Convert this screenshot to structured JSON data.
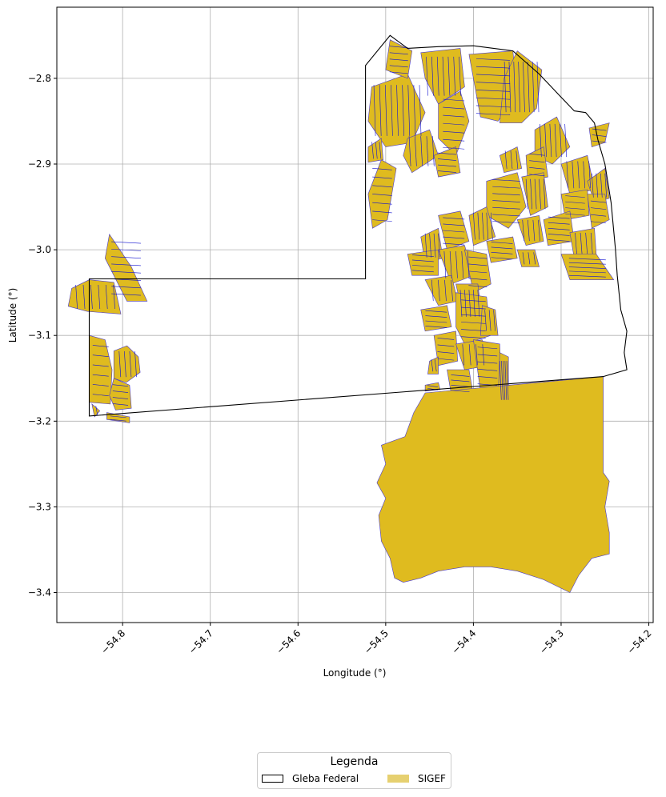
{
  "chart_data": {
    "type": "map",
    "xlabel": "Longitude (°)",
    "ylabel": "Latitude (°)",
    "xlim": [
      -54.875,
      -54.195
    ],
    "ylim": [
      -3.435,
      -2.717
    ],
    "xticks": [
      {
        "value": -54.8,
        "label": "−54.8"
      },
      {
        "value": -54.7,
        "label": "−54.7"
      },
      {
        "value": -54.6,
        "label": "−54.6"
      },
      {
        "value": -54.5,
        "label": "−54.5"
      },
      {
        "value": -54.4,
        "label": "−54.4"
      },
      {
        "value": -54.3,
        "label": "−54.3"
      },
      {
        "value": -54.2,
        "label": "−54.2"
      }
    ],
    "yticks": [
      {
        "value": -2.8,
        "label": "−2.8"
      },
      {
        "value": -2.9,
        "label": "−2.9"
      },
      {
        "value": -3.0,
        "label": "−3.0"
      },
      {
        "value": -3.1,
        "label": "−3.1"
      },
      {
        "value": -3.2,
        "label": "−3.2"
      },
      {
        "value": -3.3,
        "label": "−3.3"
      },
      {
        "value": -3.4,
        "label": "−3.4"
      }
    ],
    "grid": true,
    "xtick_rotation": 45,
    "legend_placement": "bottom-center",
    "gleba_boundary": [
      [
        -54.838,
        -3.194
      ],
      [
        -54.838,
        -3.034
      ],
      [
        -54.523,
        -3.034
      ],
      [
        -54.523,
        -2.785
      ],
      [
        -54.495,
        -2.75
      ],
      [
        -54.475,
        -2.765
      ],
      [
        -54.44,
        -2.763
      ],
      [
        -54.4,
        -2.762
      ],
      [
        -54.355,
        -2.768
      ],
      [
        -54.325,
        -2.795
      ],
      [
        -54.3,
        -2.822
      ],
      [
        -54.285,
        -2.838
      ],
      [
        -54.272,
        -2.84
      ],
      [
        -54.262,
        -2.852
      ],
      [
        -54.258,
        -2.872
      ],
      [
        -54.25,
        -2.9
      ],
      [
        -54.243,
        -2.945
      ],
      [
        -54.238,
        -3.0
      ],
      [
        -54.236,
        -3.03
      ],
      [
        -54.232,
        -3.07
      ],
      [
        -54.225,
        -3.095
      ],
      [
        -54.228,
        -3.12
      ],
      [
        -54.225,
        -3.14
      ],
      [
        -54.252,
        -3.148
      ],
      [
        -54.838,
        -3.194
      ]
    ],
    "parcels": [
      [
        [
          -54.516,
          -2.81
        ],
        [
          -54.475,
          -2.795
        ],
        [
          -54.455,
          -2.84
        ],
        [
          -54.47,
          -2.875
        ],
        [
          -54.5,
          -2.88
        ],
        [
          -54.52,
          -2.85
        ]
      ],
      [
        [
          -54.52,
          -2.935
        ],
        [
          -54.505,
          -2.895
        ],
        [
          -54.488,
          -2.905
        ],
        [
          -54.498,
          -2.965
        ],
        [
          -54.515,
          -2.975
        ]
      ],
      [
        [
          -54.52,
          -2.88
        ],
        [
          -54.505,
          -2.87
        ],
        [
          -54.503,
          -2.895
        ],
        [
          -54.52,
          -2.898
        ]
      ],
      [
        [
          -54.495,
          -2.755
        ],
        [
          -54.47,
          -2.768
        ],
        [
          -54.475,
          -2.8
        ],
        [
          -54.5,
          -2.79
        ]
      ],
      [
        [
          -54.46,
          -2.77
        ],
        [
          -54.415,
          -2.765
        ],
        [
          -54.41,
          -2.81
        ],
        [
          -54.44,
          -2.83
        ],
        [
          -54.455,
          -2.8
        ]
      ],
      [
        [
          -54.405,
          -2.772
        ],
        [
          -54.355,
          -2.768
        ],
        [
          -54.35,
          -2.82
        ],
        [
          -54.372,
          -2.85
        ],
        [
          -54.392,
          -2.845
        ],
        [
          -54.4,
          -2.8
        ]
      ],
      [
        [
          -54.35,
          -2.768
        ],
        [
          -54.322,
          -2.79
        ],
        [
          -54.328,
          -2.835
        ],
        [
          -54.345,
          -2.852
        ],
        [
          -54.37,
          -2.852
        ],
        [
          -54.365,
          -2.8
        ]
      ],
      [
        [
          -54.44,
          -2.83
        ],
        [
          -54.415,
          -2.815
        ],
        [
          -54.405,
          -2.85
        ],
        [
          -54.42,
          -2.89
        ],
        [
          -54.44,
          -2.87
        ]
      ],
      [
        [
          -54.475,
          -2.87
        ],
        [
          -54.45,
          -2.86
        ],
        [
          -54.44,
          -2.89
        ],
        [
          -54.47,
          -2.91
        ],
        [
          -54.48,
          -2.89
        ]
      ],
      [
        [
          -54.445,
          -2.89
        ],
        [
          -54.42,
          -2.88
        ],
        [
          -54.415,
          -2.91
        ],
        [
          -54.44,
          -2.915
        ]
      ],
      [
        [
          -54.33,
          -2.86
        ],
        [
          -54.305,
          -2.845
        ],
        [
          -54.29,
          -2.88
        ],
        [
          -54.31,
          -2.9
        ],
        [
          -54.33,
          -2.89
        ]
      ],
      [
        [
          -54.268,
          -2.858
        ],
        [
          -54.245,
          -2.852
        ],
        [
          -54.25,
          -2.875
        ],
        [
          -54.265,
          -2.88
        ]
      ],
      [
        [
          -54.37,
          -2.89
        ],
        [
          -54.35,
          -2.88
        ],
        [
          -54.345,
          -2.905
        ],
        [
          -54.365,
          -2.91
        ]
      ],
      [
        [
          -54.34,
          -2.89
        ],
        [
          -54.32,
          -2.88
        ],
        [
          -54.315,
          -2.915
        ],
        [
          -54.338,
          -2.92
        ]
      ],
      [
        [
          -54.3,
          -2.9
        ],
        [
          -54.27,
          -2.89
        ],
        [
          -54.262,
          -2.93
        ],
        [
          -54.29,
          -2.935
        ]
      ],
      [
        [
          -54.385,
          -2.92
        ],
        [
          -54.35,
          -2.91
        ],
        [
          -54.34,
          -2.95
        ],
        [
          -54.36,
          -2.975
        ],
        [
          -54.385,
          -2.96
        ]
      ],
      [
        [
          -54.345,
          -2.915
        ],
        [
          -54.32,
          -2.91
        ],
        [
          -54.315,
          -2.95
        ],
        [
          -54.335,
          -2.96
        ]
      ],
      [
        [
          -54.3,
          -2.935
        ],
        [
          -54.27,
          -2.93
        ],
        [
          -54.268,
          -2.96
        ],
        [
          -54.295,
          -2.965
        ]
      ],
      [
        [
          -54.27,
          -2.92
        ],
        [
          -54.25,
          -2.905
        ],
        [
          -54.245,
          -2.94
        ],
        [
          -54.262,
          -2.945
        ]
      ],
      [
        [
          -54.44,
          -2.96
        ],
        [
          -54.415,
          -2.955
        ],
        [
          -54.405,
          -2.99
        ],
        [
          -54.43,
          -3.0
        ]
      ],
      [
        [
          -54.405,
          -2.96
        ],
        [
          -54.385,
          -2.95
        ],
        [
          -54.375,
          -2.985
        ],
        [
          -54.4,
          -2.995
        ]
      ],
      [
        [
          -54.385,
          -2.99
        ],
        [
          -54.355,
          -2.985
        ],
        [
          -54.35,
          -3.01
        ],
        [
          -54.38,
          -3.015
        ]
      ],
      [
        [
          -54.35,
          -2.965
        ],
        [
          -54.325,
          -2.96
        ],
        [
          -54.32,
          -2.99
        ],
        [
          -54.34,
          -2.995
        ]
      ],
      [
        [
          -54.32,
          -2.965
        ],
        [
          -54.29,
          -2.955
        ],
        [
          -54.285,
          -2.99
        ],
        [
          -54.315,
          -2.995
        ]
      ],
      [
        [
          -54.29,
          -2.98
        ],
        [
          -54.262,
          -2.975
        ],
        [
          -54.26,
          -3.005
        ],
        [
          -54.285,
          -3.01
        ]
      ],
      [
        [
          -54.27,
          -2.935
        ],
        [
          -54.25,
          -2.935
        ],
        [
          -54.245,
          -2.965
        ],
        [
          -54.265,
          -2.975
        ]
      ],
      [
        [
          -54.46,
          -2.985
        ],
        [
          -54.44,
          -2.975
        ],
        [
          -54.435,
          -3.01
        ],
        [
          -54.455,
          -3.015
        ]
      ],
      [
        [
          -54.475,
          -3.005
        ],
        [
          -54.44,
          -3.0
        ],
        [
          -54.44,
          -3.03
        ],
        [
          -54.47,
          -3.03
        ]
      ],
      [
        [
          -54.44,
          -3.0
        ],
        [
          -54.41,
          -2.995
        ],
        [
          -54.4,
          -3.03
        ],
        [
          -54.425,
          -3.04
        ]
      ],
      [
        [
          -54.41,
          -3.0
        ],
        [
          -54.385,
          -3.005
        ],
        [
          -54.38,
          -3.04
        ],
        [
          -54.4,
          -3.05
        ]
      ],
      [
        [
          -54.35,
          -3.0
        ],
        [
          -54.33,
          -3.0
        ],
        [
          -54.325,
          -3.02
        ],
        [
          -54.345,
          -3.02
        ]
      ],
      [
        [
          -54.3,
          -3.005
        ],
        [
          -54.26,
          -3.005
        ],
        [
          -54.24,
          -3.035
        ],
        [
          -54.29,
          -3.035
        ]
      ],
      [
        [
          -54.455,
          -3.035
        ],
        [
          -54.425,
          -3.03
        ],
        [
          -54.418,
          -3.06
        ],
        [
          -54.44,
          -3.065
        ]
      ],
      [
        [
          -54.46,
          -3.07
        ],
        [
          -54.43,
          -3.065
        ],
        [
          -54.425,
          -3.09
        ],
        [
          -54.455,
          -3.095
        ]
      ],
      [
        [
          -54.42,
          -3.04
        ],
        [
          -54.395,
          -3.04
        ],
        [
          -54.39,
          -3.08
        ],
        [
          -54.41,
          -3.085
        ]
      ],
      [
        [
          -54.42,
          -3.05
        ],
        [
          -54.385,
          -3.055
        ],
        [
          -54.38,
          -3.1
        ],
        [
          -54.41,
          -3.11
        ],
        [
          -54.42,
          -3.09
        ]
      ],
      [
        [
          -54.39,
          -3.065
        ],
        [
          -54.375,
          -3.07
        ],
        [
          -54.372,
          -3.1
        ],
        [
          -54.392,
          -3.1
        ]
      ],
      [
        [
          -54.445,
          -3.1
        ],
        [
          -54.42,
          -3.095
        ],
        [
          -54.418,
          -3.13
        ],
        [
          -54.44,
          -3.135
        ]
      ],
      [
        [
          -54.42,
          -3.11
        ],
        [
          -54.39,
          -3.105
        ],
        [
          -54.382,
          -3.135
        ],
        [
          -54.41,
          -3.14
        ]
      ],
      [
        [
          -54.4,
          -3.105
        ],
        [
          -54.37,
          -3.11
        ],
        [
          -54.368,
          -3.165
        ],
        [
          -54.392,
          -3.165
        ]
      ],
      [
        [
          -54.37,
          -3.12
        ],
        [
          -54.36,
          -3.125
        ],
        [
          -54.36,
          -3.185
        ],
        [
          -54.372,
          -3.18
        ]
      ],
      [
        [
          -54.43,
          -3.14
        ],
        [
          -54.405,
          -3.14
        ],
        [
          -54.4,
          -3.17
        ],
        [
          -54.425,
          -3.17
        ]
      ],
      [
        [
          -54.45,
          -3.13
        ],
        [
          -54.44,
          -3.125
        ],
        [
          -54.44,
          -3.145
        ],
        [
          -54.452,
          -3.145
        ]
      ],
      [
        [
          -54.455,
          -3.158
        ],
        [
          -54.44,
          -3.155
        ],
        [
          -54.438,
          -3.163
        ],
        [
          -54.455,
          -3.165
        ]
      ],
      [
        [
          -54.455,
          -3.167
        ],
        [
          -54.252,
          -3.148
        ],
        [
          -54.252,
          -3.26
        ],
        [
          -54.245,
          -3.27
        ],
        [
          -54.25,
          -3.3
        ],
        [
          -54.245,
          -3.33
        ],
        [
          -54.245,
          -3.355
        ],
        [
          -54.265,
          -3.36
        ],
        [
          -54.28,
          -3.38
        ],
        [
          -54.29,
          -3.4
        ],
        [
          -54.32,
          -3.385
        ],
        [
          -54.35,
          -3.375
        ],
        [
          -54.38,
          -3.37
        ],
        [
          -54.41,
          -3.37
        ],
        [
          -54.44,
          -3.375
        ],
        [
          -54.46,
          -3.383
        ],
        [
          -54.48,
          -3.388
        ],
        [
          -54.49,
          -3.383
        ],
        [
          -54.495,
          -3.36
        ],
        [
          -54.505,
          -3.34
        ],
        [
          -54.508,
          -3.31
        ],
        [
          -54.5,
          -3.29
        ],
        [
          -54.51,
          -3.272
        ],
        [
          -54.5,
          -3.25
        ],
        [
          -54.505,
          -3.228
        ],
        [
          -54.478,
          -3.218
        ],
        [
          -54.468,
          -3.19
        ]
      ],
      [
        [
          -54.815,
          -2.982
        ],
        [
          -54.79,
          -3.02
        ],
        [
          -54.772,
          -3.06
        ],
        [
          -54.795,
          -3.06
        ],
        [
          -54.82,
          -3.01
        ]
      ],
      [
        [
          -54.838,
          -3.035
        ],
        [
          -54.81,
          -3.038
        ],
        [
          -54.802,
          -3.075
        ],
        [
          -54.84,
          -3.072
        ],
        [
          -54.862,
          -3.066
        ],
        [
          -54.858,
          -3.045
        ]
      ],
      [
        [
          -54.838,
          -3.1
        ],
        [
          -54.82,
          -3.105
        ],
        [
          -54.812,
          -3.14
        ],
        [
          -54.814,
          -3.18
        ],
        [
          -54.838,
          -3.178
        ]
      ],
      [
        [
          -54.81,
          -3.118
        ],
        [
          -54.795,
          -3.112
        ],
        [
          -54.782,
          -3.125
        ],
        [
          -54.78,
          -3.143
        ],
        [
          -54.796,
          -3.155
        ],
        [
          -54.81,
          -3.15
        ]
      ],
      [
        [
          -54.81,
          -3.15
        ],
        [
          -54.792,
          -3.158
        ],
        [
          -54.79,
          -3.185
        ],
        [
          -54.808,
          -3.187
        ],
        [
          -54.815,
          -3.17
        ]
      ],
      [
        [
          -54.835,
          -3.18
        ],
        [
          -54.826,
          -3.188
        ],
        [
          -54.832,
          -3.195
        ]
      ],
      [
        [
          -54.818,
          -3.19
        ],
        [
          -54.792,
          -3.195
        ],
        [
          -54.792,
          -3.202
        ],
        [
          -54.818,
          -3.198
        ]
      ]
    ],
    "legend": {
      "title": "Legenda",
      "items": [
        {
          "label": "Gleba Federal",
          "style": "outline",
          "color": "#000000"
        },
        {
          "label": "SIGEF",
          "style": "fill",
          "color": "#dfbb1f"
        }
      ]
    },
    "colors": {
      "parcel_fill": "#dfbb1f",
      "parcel_edge": "#4a3ac8",
      "boundary": "#000000",
      "grid": "#b0b0b0"
    }
  }
}
